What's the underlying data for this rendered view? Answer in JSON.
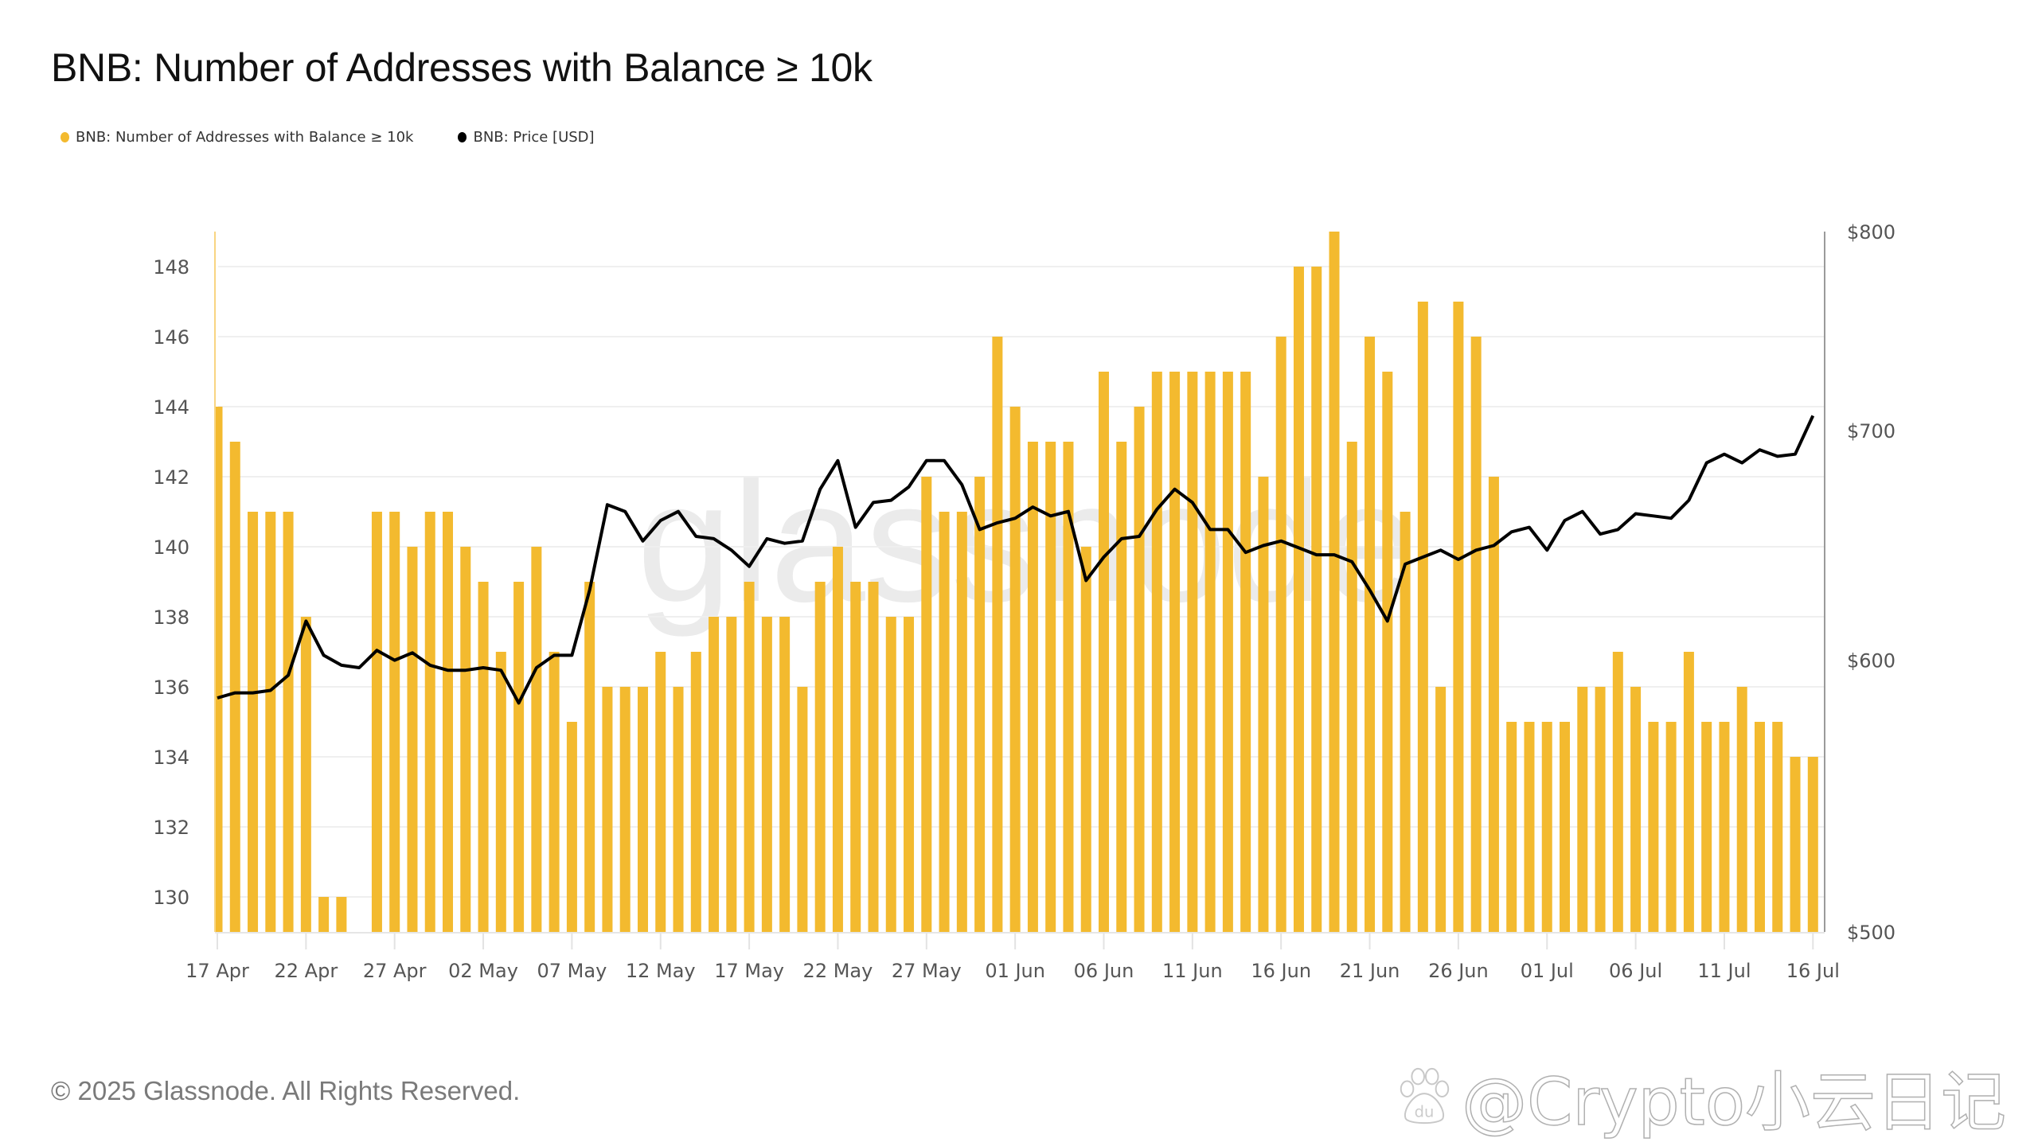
{
  "title": "BNB: Number of Addresses with Balance ≥ 10k",
  "legend": [
    {
      "label": "BNB: Number of Addresses with Balance ≥ 10k",
      "color": "#F3BA2F",
      "icon": "dot-icon"
    },
    {
      "label": "BNB: Price [USD]",
      "color": "#000000",
      "icon": "dot-icon"
    }
  ],
  "footer": "© 2025 Glassnode. All Rights Reserved.",
  "watermarks": {
    "center": "glassnode",
    "corner_brand": "glassnode",
    "overlay": "@Crypto小云日记",
    "overlay_icon": "baidu-paw-icon"
  },
  "chart_data": {
    "type": "bar+line",
    "title": "BNB: Number of Addresses with Balance ≥ 10k",
    "xlabel": "",
    "ylabel": "",
    "y2label": "",
    "start_date": "17 Apr",
    "end_date": "16 Jul",
    "x_tick_labels": [
      "17 Apr",
      "22 Apr",
      "27 Apr",
      "02 May",
      "07 May",
      "12 May",
      "17 May",
      "22 May",
      "27 May",
      "01 Jun",
      "06 Jun",
      "11 Jun",
      "16 Jun",
      "21 Jun",
      "26 Jun",
      "01 Jul",
      "06 Jul",
      "11 Jul",
      "16 Jul"
    ],
    "x_tick_every_days": 5,
    "y_left": {
      "min": 129,
      "max": 149,
      "ticks": [
        130,
        132,
        134,
        136,
        138,
        140,
        142,
        144,
        146,
        148
      ],
      "scale": "linear"
    },
    "y_right": {
      "min": 500,
      "max": 800,
      "ticks": [
        "$500",
        "$600",
        "$700",
        "$800"
      ],
      "tick_values": [
        500,
        600,
        700,
        800
      ],
      "scale": "log"
    },
    "grid": true,
    "legend_position": "top-left",
    "dates": [
      "17 Apr",
      "18 Apr",
      "19 Apr",
      "20 Apr",
      "21 Apr",
      "22 Apr",
      "23 Apr",
      "24 Apr",
      "25 Apr",
      "26 Apr",
      "27 Apr",
      "28 Apr",
      "29 Apr",
      "30 Apr",
      "01 May",
      "02 May",
      "03 May",
      "04 May",
      "05 May",
      "06 May",
      "07 May",
      "08 May",
      "09 May",
      "10 May",
      "11 May",
      "12 May",
      "13 May",
      "14 May",
      "15 May",
      "16 May",
      "17 May",
      "18 May",
      "19 May",
      "20 May",
      "21 May",
      "22 May",
      "23 May",
      "24 May",
      "25 May",
      "26 May",
      "27 May",
      "28 May",
      "29 May",
      "30 May",
      "31 May",
      "01 Jun",
      "02 Jun",
      "03 Jun",
      "04 Jun",
      "05 Jun",
      "06 Jun",
      "07 Jun",
      "08 Jun",
      "09 Jun",
      "10 Jun",
      "11 Jun",
      "12 Jun",
      "13 Jun",
      "14 Jun",
      "15 Jun",
      "16 Jun",
      "17 Jun",
      "18 Jun",
      "19 Jun",
      "20 Jun",
      "21 Jun",
      "22 Jun",
      "23 Jun",
      "24 Jun",
      "25 Jun",
      "26 Jun",
      "27 Jun",
      "28 Jun",
      "29 Jun",
      "30 Jun",
      "01 Jul",
      "02 Jul",
      "03 Jul",
      "04 Jul",
      "05 Jul",
      "06 Jul",
      "07 Jul",
      "08 Jul",
      "09 Jul",
      "10 Jul",
      "11 Jul",
      "12 Jul",
      "13 Jul",
      "14 Jul",
      "15 Jul",
      "16 Jul"
    ],
    "series": [
      {
        "name": "BNB: Number of Addresses with Balance ≥ 10k",
        "type": "bar",
        "axis": "left",
        "color": "#F3BA2F",
        "values": [
          144,
          143,
          141,
          141,
          141,
          138,
          130,
          130,
          null,
          141,
          141,
          140,
          141,
          141,
          140,
          139,
          137,
          139,
          140,
          137,
          135,
          139,
          136,
          136,
          136,
          137,
          136,
          137,
          138,
          138,
          139,
          138,
          138,
          136,
          139,
          140,
          139,
          139,
          138,
          138,
          142,
          141,
          141,
          142,
          146,
          144,
          143,
          143,
          143,
          140,
          145,
          143,
          144,
          145,
          145,
          145,
          145,
          145,
          145,
          142,
          146,
          148,
          148,
          149,
          143,
          146,
          145,
          141,
          147,
          136,
          147,
          146,
          142,
          135,
          135,
          135,
          135,
          136,
          136,
          137,
          136,
          135,
          135,
          137,
          135,
          135,
          136,
          135,
          135,
          134,
          134
        ]
      },
      {
        "name": "BNB: Price [USD]",
        "type": "line",
        "axis": "right",
        "color": "#000000",
        "values": [
          585,
          587,
          587,
          588,
          594,
          616,
          602,
          598,
          597,
          604,
          600,
          603,
          598,
          596,
          596,
          597,
          596,
          583,
          597,
          602,
          602,
          629,
          666,
          663,
          650,
          659,
          663,
          652,
          651,
          646,
          639,
          651,
          649,
          650,
          673,
          686,
          656,
          667,
          668,
          674,
          686,
          686,
          675,
          655,
          658,
          660,
          665,
          661,
          663,
          633,
          643,
          651,
          652,
          664,
          673,
          667,
          655,
          655,
          645,
          648,
          650,
          647,
          644,
          644,
          641,
          629,
          616,
          640,
          643,
          646,
          642,
          646,
          648,
          654,
          656,
          646,
          659,
          663,
          653,
          655,
          662,
          661,
          660,
          668,
          685,
          689,
          685,
          691,
          688,
          689,
          707
        ]
      }
    ]
  }
}
